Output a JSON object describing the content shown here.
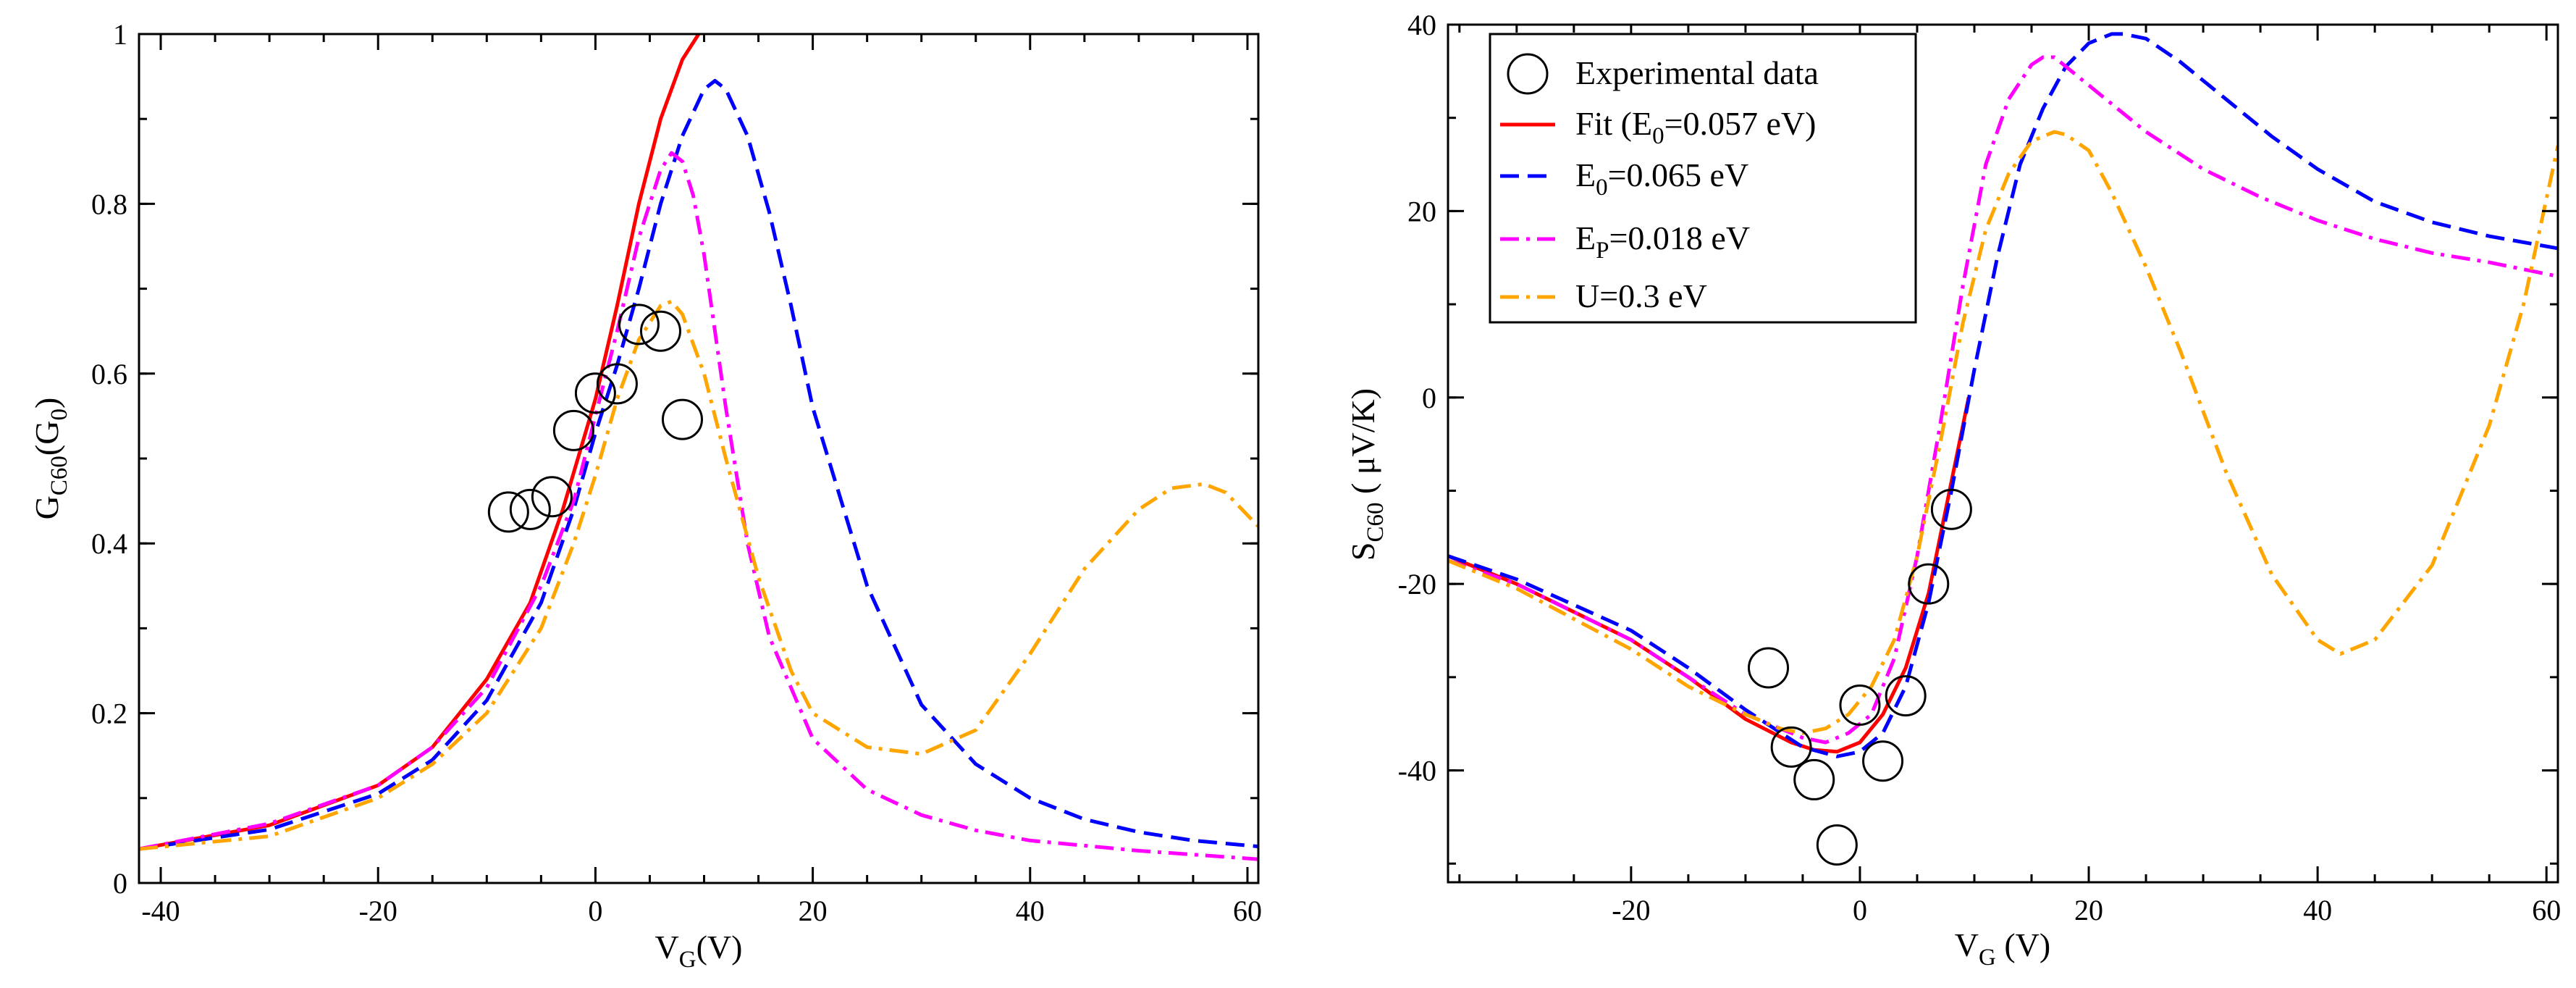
{
  "colors": {
    "fit": "#ff0000",
    "e0": "#0000ff",
    "ep": "#ff00ff",
    "u": "#ffa500",
    "marker": "#000000"
  },
  "legend": {
    "experimental": "Experimental data",
    "fit_pre": "Fit (E",
    "fit_sub": "0",
    "fit_post": "=0.057 eV)",
    "e0_pre": "E",
    "e0_sub": "0",
    "e0_post": "=0.065 eV",
    "ep_pre": "E",
    "ep_sub": "P",
    "ep_post": "=0.018 eV",
    "u_label": "U=0.3 eV"
  },
  "chart_data": [
    {
      "type": "line",
      "xlabel_main": "V",
      "xlabel_sub": "G",
      "xlabel_tail": "(V)",
      "ylabel_main": "G",
      "ylabel_sub": "C60",
      "ylabel_mid": "(G",
      "ylabel_sub2": "0",
      "ylabel_tail": ")",
      "xlim": [
        -42,
        61
      ],
      "ylim": [
        0,
        1
      ],
      "xticks": [
        "-40",
        "-20",
        "0",
        "20",
        "40",
        "60"
      ],
      "xtick_values": [
        -40,
        -20,
        0,
        20,
        40,
        60
      ],
      "yticks": [
        "0",
        "0.2",
        "0.4",
        "0.6",
        "0.8",
        "1"
      ],
      "ytick_values": [
        0,
        0.2,
        0.4,
        0.6,
        0.8,
        1
      ],
      "experimental": {
        "x": [
          -8,
          -6,
          -4,
          -2,
          0,
          2,
          4,
          6,
          8
        ],
        "y": [
          0.437,
          0.44,
          0.455,
          0.533,
          0.577,
          0.588,
          0.658,
          0.65,
          0.546
        ]
      },
      "series": [
        {
          "name": "Fit (E0=0.057 eV)",
          "key": "fit",
          "style": "solid",
          "x": [
            -42,
            -30,
            -20,
            -15,
            -10,
            -6,
            -3,
            0,
            2,
            4,
            6,
            8,
            9.5
          ],
          "y": [
            0.04,
            0.068,
            0.115,
            0.16,
            0.24,
            0.33,
            0.44,
            0.57,
            0.68,
            0.8,
            0.9,
            0.97,
            1.0
          ]
        },
        {
          "name": "E0=0.065 eV",
          "key": "e0",
          "style": "dash",
          "x": [
            -42,
            -30,
            -20,
            -15,
            -10,
            -5,
            -2,
            0,
            2,
            4,
            6,
            8,
            10,
            11,
            12,
            14,
            16,
            18,
            20,
            25,
            30,
            35,
            40,
            45,
            50,
            55,
            61
          ],
          "y": [
            0.04,
            0.063,
            0.105,
            0.145,
            0.215,
            0.33,
            0.44,
            0.53,
            0.61,
            0.7,
            0.8,
            0.88,
            0.935,
            0.945,
            0.935,
            0.88,
            0.79,
            0.68,
            0.56,
            0.35,
            0.21,
            0.14,
            0.1,
            0.075,
            0.06,
            0.05,
            0.043
          ]
        },
        {
          "name": "EP=0.018 eV",
          "key": "ep",
          "style": "dashdot",
          "x": [
            -42,
            -30,
            -20,
            -15,
            -10,
            -5,
            -2,
            0,
            2,
            4,
            6,
            7,
            8,
            9,
            10,
            12,
            14,
            16,
            20,
            25,
            30,
            35,
            40,
            50,
            61
          ],
          "y": [
            0.04,
            0.07,
            0.115,
            0.16,
            0.23,
            0.35,
            0.45,
            0.55,
            0.65,
            0.76,
            0.84,
            0.86,
            0.85,
            0.81,
            0.74,
            0.56,
            0.4,
            0.29,
            0.17,
            0.11,
            0.08,
            0.062,
            0.05,
            0.038,
            0.028
          ]
        },
        {
          "name": "U=0.3 eV",
          "key": "u",
          "style": "dashdot",
          "x": [
            -42,
            -30,
            -20,
            -15,
            -10,
            -5,
            -2,
            0,
            2,
            4,
            6,
            7,
            8,
            10,
            12,
            15,
            18,
            20,
            25,
            30,
            35,
            40,
            45,
            50,
            53,
            56,
            58,
            61
          ],
          "y": [
            0.04,
            0.055,
            0.1,
            0.14,
            0.2,
            0.3,
            0.4,
            0.48,
            0.57,
            0.64,
            0.68,
            0.685,
            0.67,
            0.6,
            0.5,
            0.36,
            0.25,
            0.2,
            0.16,
            0.152,
            0.18,
            0.27,
            0.37,
            0.44,
            0.465,
            0.47,
            0.46,
            0.42
          ]
        }
      ]
    },
    {
      "type": "line",
      "xlabel_main": "V",
      "xlabel_sub": "G",
      "xlabel_tail": " (V)",
      "ylabel_main": "S",
      "ylabel_sub": "C60",
      "ylabel_tail": " ( μV/K)",
      "xlim": [
        -36,
        61
      ],
      "ylim": [
        -52,
        40
      ],
      "xticks": [
        "-20",
        "0",
        "20",
        "40",
        "60"
      ],
      "xtick_values": [
        -20,
        0,
        20,
        40,
        60
      ],
      "yticks": [
        "-40",
        "-20",
        "0",
        "20",
        "40"
      ],
      "ytick_values": [
        -40,
        -20,
        0,
        20,
        40
      ],
      "experimental": {
        "x": [
          -8,
          -6,
          -4,
          -2,
          0,
          2,
          4,
          6,
          8
        ],
        "y": [
          -29,
          -37.5,
          -41,
          -48,
          -33,
          -39,
          -32,
          -20,
          -12
        ]
      },
      "series": [
        {
          "name": "Fit (E0=0.057 eV)",
          "key": "fit",
          "style": "solid",
          "x": [
            -36,
            -30,
            -20,
            -15,
            -10,
            -6,
            -4,
            -2,
            0,
            2,
            4,
            6,
            7,
            8,
            9,
            9.5
          ],
          "y": [
            -17,
            -20,
            -26,
            -30,
            -34.5,
            -37,
            -37.8,
            -38,
            -37,
            -34,
            -29,
            -21,
            -15,
            -9,
            -3,
            0
          ]
        },
        {
          "name": "E0=0.065 eV",
          "key": "e0",
          "style": "dash",
          "x": [
            -36,
            -30,
            -20,
            -15,
            -10,
            -5,
            -2,
            0,
            2,
            4,
            6,
            8,
            10,
            12,
            14,
            16,
            18,
            20,
            22,
            23,
            25,
            28,
            32,
            36,
            40,
            45,
            50,
            55,
            61
          ],
          "y": [
            -17,
            -19.5,
            -25,
            -29,
            -33.5,
            -37.5,
            -38.5,
            -38,
            -36,
            -31,
            -22,
            -10,
            3,
            15,
            25,
            31,
            35.5,
            38,
            39,
            39,
            38.5,
            36,
            32,
            28,
            24.5,
            21,
            18.8,
            17.3,
            16
          ]
        },
        {
          "name": "EP=0.018 eV",
          "key": "ep",
          "style": "dashdot",
          "x": [
            -36,
            -30,
            -20,
            -15,
            -10,
            -5,
            -3,
            -1,
            1,
            3,
            5,
            7,
            9,
            11,
            13,
            15,
            16,
            17,
            18,
            20,
            25,
            30,
            35,
            40,
            45,
            50,
            55,
            61
          ],
          "y": [
            -17.5,
            -20,
            -26,
            -30,
            -34,
            -36.5,
            -37,
            -36,
            -34,
            -28,
            -17,
            -3,
            12,
            25,
            32,
            35.7,
            36.5,
            36.5,
            35.5,
            33.5,
            28.5,
            24.5,
            21.5,
            19,
            17,
            15.5,
            14.5,
            13
          ]
        },
        {
          "name": "U=0.3 eV",
          "key": "u",
          "style": "dashdot",
          "x": [
            -36,
            -30,
            -20,
            -15,
            -10,
            -7,
            -5,
            -3,
            -1,
            1,
            3,
            5,
            7,
            9,
            11,
            13,
            15,
            17,
            18,
            20,
            22,
            25,
            28,
            32,
            36,
            40,
            42,
            45,
            50,
            55,
            58,
            61
          ],
          "y": [
            -17.5,
            -20.5,
            -27,
            -31,
            -34,
            -35.5,
            -36,
            -35.5,
            -34,
            -31,
            -26,
            -17,
            -5,
            8,
            18,
            24,
            27.5,
            28.5,
            28.2,
            26.5,
            22,
            14,
            5,
            -8,
            -19,
            -26,
            -27.5,
            -26,
            -18,
            -3,
            10,
            27
          ]
        }
      ]
    }
  ]
}
